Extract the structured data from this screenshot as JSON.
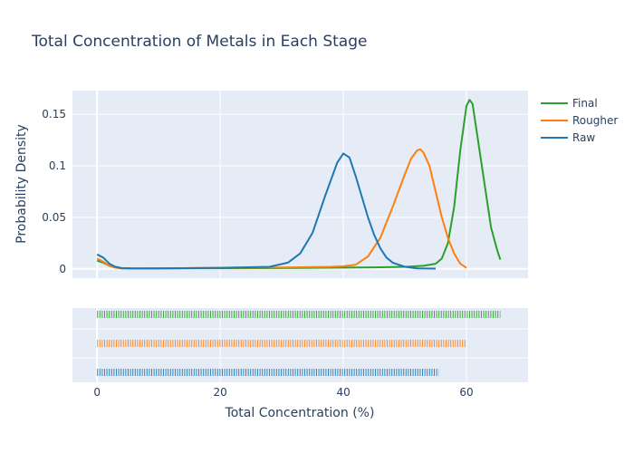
{
  "chart_data": {
    "type": "line",
    "title": "Total Concentration of Metals in Each Stage",
    "xlabel": "Total Concentration (%)",
    "ylabel": "Probability Density",
    "xlim": [
      -4,
      70
    ],
    "ylim": [
      -0.009,
      0.173
    ],
    "x_ticks": [
      0,
      20,
      40,
      60
    ],
    "y_ticks": [
      0,
      0.05,
      0.1,
      0.15
    ],
    "x_tick_labels": [
      "0",
      "20",
      "40",
      "60"
    ],
    "y_tick_labels": [
      "0",
      "0.05",
      "0.1",
      "0.15"
    ],
    "grid": true,
    "legend_position": "top-right",
    "series": [
      {
        "name": "Final",
        "color": "#2ca02c",
        "points": [
          [
            0,
            0.008
          ],
          [
            1,
            0.006
          ],
          [
            2,
            0.003
          ],
          [
            3,
            0.0012
          ],
          [
            4,
            0.0005
          ],
          [
            6,
            0.0003
          ],
          [
            10,
            0.0004
          ],
          [
            20,
            0.0006
          ],
          [
            30,
            0.0008
          ],
          [
            40,
            0.0012
          ],
          [
            45,
            0.0015
          ],
          [
            50,
            0.002
          ],
          [
            53,
            0.003
          ],
          [
            55,
            0.005
          ],
          [
            56,
            0.01
          ],
          [
            57,
            0.025
          ],
          [
            58,
            0.06
          ],
          [
            59,
            0.115
          ],
          [
            60,
            0.158
          ],
          [
            60.5,
            0.164
          ],
          [
            61,
            0.16
          ],
          [
            62,
            0.12
          ],
          [
            63,
            0.08
          ],
          [
            64,
            0.04
          ],
          [
            65,
            0.018
          ],
          [
            65.5,
            0.009
          ]
        ],
        "rug_range": [
          0,
          65.5
        ]
      },
      {
        "name": "Rougher",
        "color": "#ff7f0e",
        "points": [
          [
            0,
            0.01
          ],
          [
            1,
            0.007
          ],
          [
            2,
            0.003
          ],
          [
            3,
            0.0012
          ],
          [
            4,
            0.0005
          ],
          [
            6,
            0.0003
          ],
          [
            10,
            0.0005
          ],
          [
            20,
            0.001
          ],
          [
            30,
            0.0013
          ],
          [
            38,
            0.002
          ],
          [
            40,
            0.0025
          ],
          [
            42,
            0.004
          ],
          [
            44,
            0.012
          ],
          [
            46,
            0.03
          ],
          [
            48,
            0.06
          ],
          [
            50,
            0.092
          ],
          [
            51,
            0.107
          ],
          [
            52,
            0.115
          ],
          [
            52.5,
            0.116
          ],
          [
            53,
            0.113
          ],
          [
            54,
            0.1
          ],
          [
            55,
            0.075
          ],
          [
            56,
            0.05
          ],
          [
            57,
            0.03
          ],
          [
            58,
            0.015
          ],
          [
            59,
            0.005
          ],
          [
            60,
            0.001
          ]
        ],
        "rug_range": [
          0,
          60
        ]
      },
      {
        "name": "Raw",
        "color": "#1f77b4",
        "points": [
          [
            0,
            0.014
          ],
          [
            1,
            0.011
          ],
          [
            2,
            0.005
          ],
          [
            3,
            0.002
          ],
          [
            4,
            0.0008
          ],
          [
            6,
            0.0005
          ],
          [
            10,
            0.0005
          ],
          [
            20,
            0.001
          ],
          [
            28,
            0.002
          ],
          [
            31,
            0.006
          ],
          [
            33,
            0.015
          ],
          [
            35,
            0.035
          ],
          [
            37,
            0.07
          ],
          [
            39,
            0.103
          ],
          [
            40,
            0.112
          ],
          [
            41,
            0.108
          ],
          [
            42,
            0.09
          ],
          [
            43,
            0.07
          ],
          [
            44,
            0.05
          ],
          [
            45,
            0.033
          ],
          [
            46,
            0.02
          ],
          [
            47,
            0.011
          ],
          [
            48,
            0.006
          ],
          [
            50,
            0.002
          ],
          [
            52,
            0.0005
          ],
          [
            55,
            0.0002
          ]
        ],
        "rug_range": [
          0,
          55.5
        ]
      }
    ]
  }
}
